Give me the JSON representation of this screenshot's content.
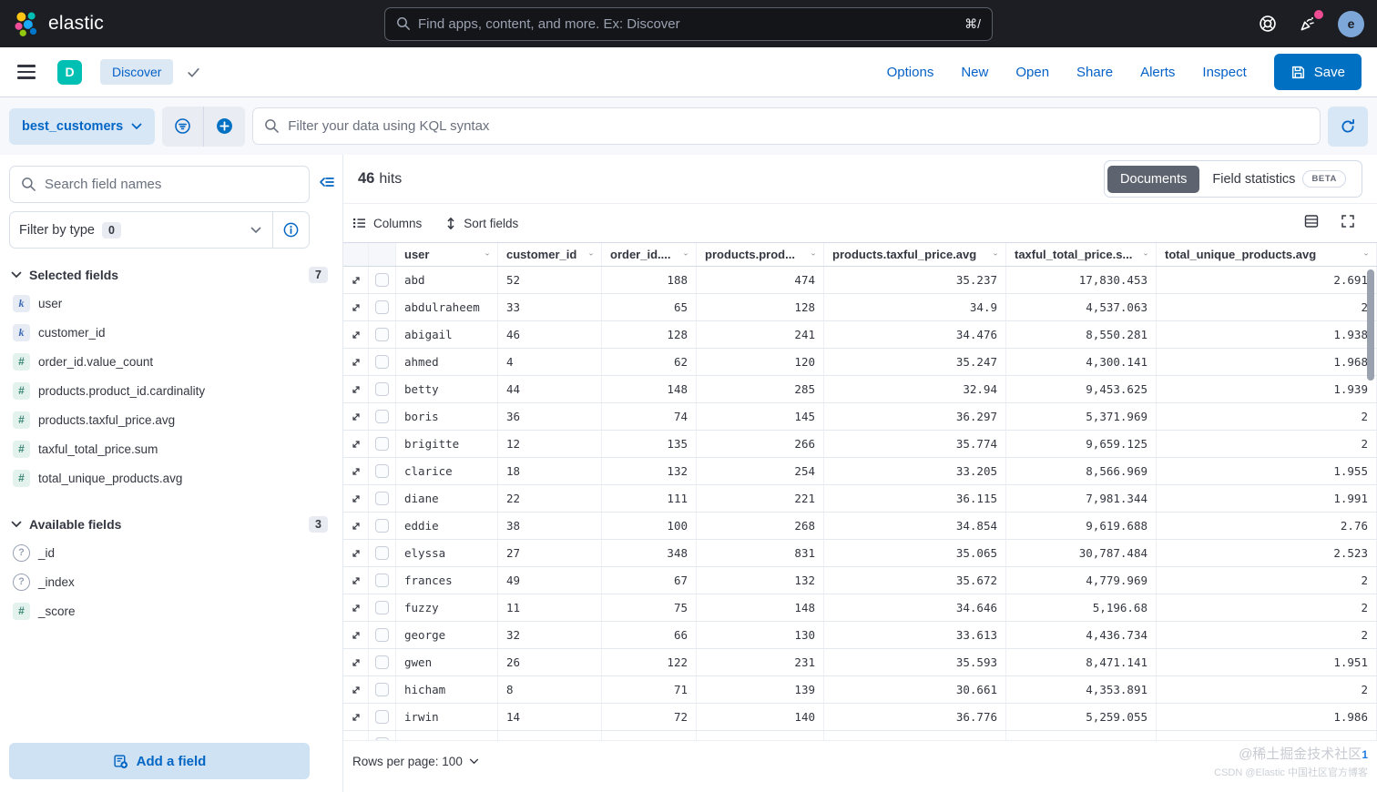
{
  "top_bar": {
    "brand": "elastic",
    "search_placeholder": "Find apps, content, and more. Ex: Discover",
    "search_shortcut": "⌘/",
    "avatar_initial": "e"
  },
  "nav_bar": {
    "app_badge": "D",
    "breadcrumb": "Discover",
    "menu_links": [
      "Options",
      "New",
      "Open",
      "Share",
      "Alerts",
      "Inspect"
    ],
    "save_label": "Save"
  },
  "query_bar": {
    "data_view": "best_customers",
    "kql_placeholder": "Filter your data using KQL syntax"
  },
  "sidebar": {
    "search_placeholder": "Search field names",
    "filter_by_type": {
      "label": "Filter by type",
      "count": "0"
    },
    "selected": {
      "label": "Selected fields",
      "count": "7",
      "items": [
        {
          "glyph": "k",
          "kind": "keyword",
          "name": "user"
        },
        {
          "glyph": "k",
          "kind": "keyword",
          "name": "customer_id"
        },
        {
          "glyph": "#",
          "kind": "number",
          "name": "order_id.value_count"
        },
        {
          "glyph": "#",
          "kind": "number",
          "name": "products.product_id.cardinality"
        },
        {
          "glyph": "#",
          "kind": "number",
          "name": "products.taxful_price.avg"
        },
        {
          "glyph": "#",
          "kind": "number",
          "name": "taxful_total_price.sum"
        },
        {
          "glyph": "#",
          "kind": "number",
          "name": "total_unique_products.avg"
        }
      ]
    },
    "available": {
      "label": "Available fields",
      "count": "3",
      "items": [
        {
          "glyph": "?",
          "kind": "unknown",
          "name": "_id"
        },
        {
          "glyph": "?",
          "kind": "unknown",
          "name": "_index"
        },
        {
          "glyph": "#",
          "kind": "number",
          "name": "_score"
        }
      ]
    },
    "add_field_label": "Add a field"
  },
  "main": {
    "hits_count": "46",
    "hits_label": "hits",
    "tabs": [
      {
        "label": "Documents",
        "selected": true
      },
      {
        "label": "Field statistics",
        "badge": "BETA",
        "selected": false
      }
    ],
    "toolbar": {
      "columns_label": "Columns",
      "sort_label": "Sort fields"
    },
    "table": {
      "columns": [
        "user",
        "customer_id",
        "order_id....",
        "products.prod...",
        "products.taxful_price.avg",
        "taxful_total_price.s...",
        "total_unique_products.avg"
      ],
      "rows": [
        [
          "abd",
          "52",
          "188",
          "474",
          "35.237",
          "17,830.453",
          "2.691"
        ],
        [
          "abdulraheem",
          "33",
          "65",
          "128",
          "34.9",
          "4,537.063",
          "2"
        ],
        [
          "abigail",
          "46",
          "128",
          "241",
          "34.476",
          "8,550.281",
          "1.938"
        ],
        [
          "ahmed",
          "4",
          "62",
          "120",
          "35.247",
          "4,300.141",
          "1.968"
        ],
        [
          "betty",
          "44",
          "148",
          "285",
          "32.94",
          "9,453.625",
          "1.939"
        ],
        [
          "boris",
          "36",
          "74",
          "145",
          "36.297",
          "5,371.969",
          "2"
        ],
        [
          "brigitte",
          "12",
          "135",
          "266",
          "35.774",
          "9,659.125",
          "2"
        ],
        [
          "clarice",
          "18",
          "132",
          "254",
          "33.205",
          "8,566.969",
          "1.955"
        ],
        [
          "diane",
          "22",
          "111",
          "221",
          "36.115",
          "7,981.344",
          "1.991"
        ],
        [
          "eddie",
          "38",
          "100",
          "268",
          "34.854",
          "9,619.688",
          "2.76"
        ],
        [
          "elyssa",
          "27",
          "348",
          "831",
          "35.065",
          "30,787.484",
          "2.523"
        ],
        [
          "frances",
          "49",
          "67",
          "132",
          "35.672",
          "4,779.969",
          "2"
        ],
        [
          "fuzzy",
          "11",
          "75",
          "148",
          "34.646",
          "5,196.68",
          "2"
        ],
        [
          "george",
          "32",
          "66",
          "130",
          "33.613",
          "4,436.734",
          "2"
        ],
        [
          "gwen",
          "26",
          "122",
          "231",
          "35.593",
          "8,471.141",
          "1.951"
        ],
        [
          "hicham",
          "8",
          "71",
          "139",
          "30.661",
          "4,353.891",
          "2"
        ],
        [
          "irwin",
          "14",
          "72",
          "140",
          "36.776",
          "5,259.055",
          "1.986"
        ]
      ]
    },
    "footer": {
      "rows_per_page": "Rows per page: 100"
    }
  },
  "watermark": {
    "line1": "@稀土掘金技术社区",
    "line2": "CSDN @Elastic 中国社区官方博客",
    "badge": "1"
  }
}
